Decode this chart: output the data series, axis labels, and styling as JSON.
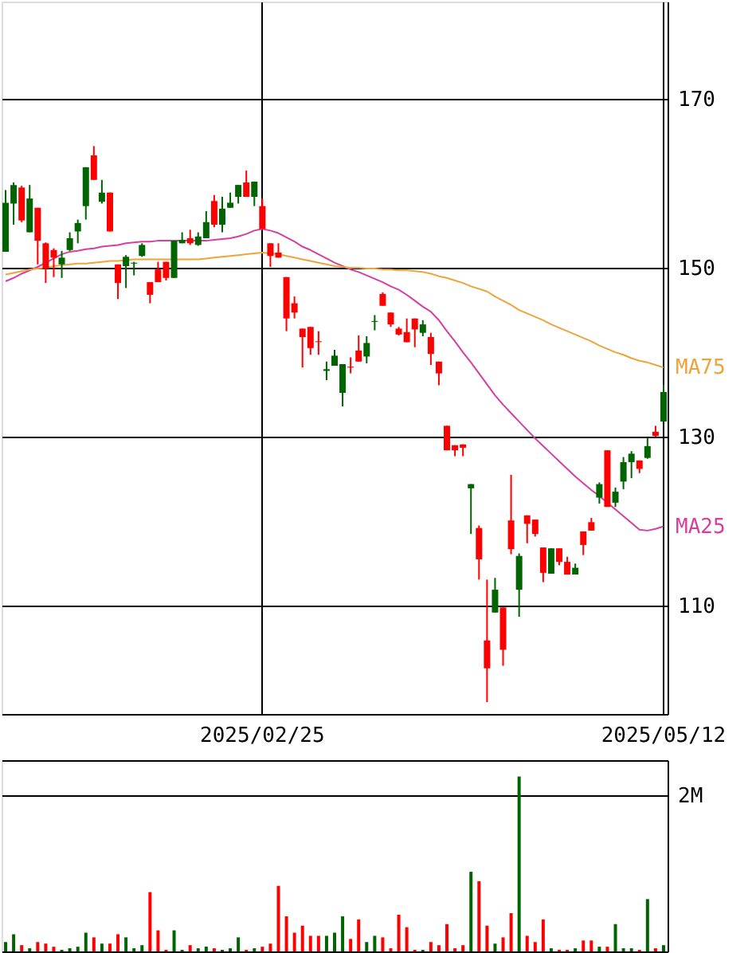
{
  "chart_data": [
    {
      "type": "candlestick",
      "categories": [
        null,
        null,
        null,
        null,
        null,
        null,
        null,
        null,
        null,
        null,
        null,
        null,
        null,
        null,
        null,
        null,
        null,
        null,
        null,
        null,
        null,
        null,
        null,
        null,
        null,
        null,
        null,
        null,
        null,
        null,
        null,
        null,
        "2025/02/25",
        null,
        null,
        null,
        null,
        null,
        null,
        null,
        null,
        null,
        null,
        null,
        null,
        null,
        null,
        null,
        null,
        null,
        null,
        null,
        null,
        null,
        null,
        null,
        null,
        null,
        null,
        null,
        null,
        null,
        null,
        null,
        null,
        null,
        null,
        null,
        null,
        null,
        null,
        null,
        null,
        null,
        null,
        null,
        null,
        null,
        null,
        null,
        null,
        null,
        "2025/05/12"
      ],
      "ohlc": [
        [
          151.9,
          159.2,
          151.9,
          157.7
        ],
        [
          157.6,
          160.1,
          155.1,
          159.8
        ],
        [
          159.5,
          159.7,
          155.4,
          155.6
        ],
        [
          154.2,
          159.8,
          154.2,
          158.2
        ],
        [
          157.1,
          157.1,
          150.4,
          153.2
        ],
        [
          152.9,
          153.0,
          148.2,
          149.9
        ],
        [
          152.1,
          152.3,
          148.9,
          151.2
        ],
        [
          150.4,
          152.0,
          148.8,
          151.2
        ],
        [
          152.1,
          154.2,
          152.0,
          153.5
        ],
        [
          154.3,
          155.7,
          152.9,
          155.3
        ],
        [
          157.3,
          161.9,
          155.7,
          161.9
        ],
        [
          163.3,
          164.4,
          160.4,
          160.4
        ],
        [
          157.8,
          160.4,
          157.6,
          158.9
        ],
        [
          158.9,
          158.9,
          154.3,
          154.3
        ],
        [
          150.4,
          150.4,
          146.3,
          148.2
        ],
        [
          150.2,
          151.5,
          147.6,
          151.3
        ],
        [
          150.5,
          150.7,
          149.1,
          150.6
        ],
        [
          151.4,
          152.9,
          151.3,
          152.7
        ],
        [
          148.3,
          148.3,
          145.8,
          146.8
        ],
        [
          149.8,
          150.7,
          148.3,
          148.3
        ],
        [
          150.7,
          150.7,
          148.5,
          148.8
        ],
        [
          148.8,
          153.2,
          148.8,
          153.2
        ],
        [
          152.9,
          154.2,
          152.9,
          153.3
        ],
        [
          153.5,
          154.5,
          152.7,
          152.9
        ],
        [
          152.7,
          154.2,
          152.6,
          153.7
        ],
        [
          153.5,
          156.7,
          153.5,
          155.4
        ],
        [
          157.9,
          158.6,
          154.8,
          155.1
        ],
        [
          155.1,
          158.4,
          154.2,
          157.0
        ],
        [
          157.1,
          158.9,
          157.1,
          157.7
        ],
        [
          158.4,
          159.8,
          157.6,
          159.8
        ],
        [
          160.1,
          161.5,
          158.4,
          158.4
        ],
        [
          158.4,
          160.2,
          157.3,
          160.2
        ],
        [
          157.3,
          158.2,
          154.6,
          154.6
        ],
        [
          152.9,
          152.9,
          150.1,
          151.4
        ],
        [
          151.8,
          152.9,
          151.2,
          151.2
        ],
        [
          148.9,
          148.9,
          142.5,
          144.0
        ],
        [
          145.8,
          146.6,
          144.0,
          144.7
        ],
        [
          142.8,
          142.8,
          138.2,
          141.8
        ],
        [
          143.0,
          143.0,
          139.7,
          140.5
        ],
        [
          141.3,
          142.5,
          139.7,
          141.2
        ],
        [
          137.8,
          138.9,
          136.7,
          138.0
        ],
        [
          138.4,
          140.3,
          138.4,
          139.6
        ],
        [
          135.2,
          138.6,
          133.6,
          138.6
        ],
        [
          138.3,
          139.4,
          137.5,
          138.2
        ],
        [
          140.2,
          142.0,
          138.9,
          138.9
        ],
        [
          139.5,
          141.9,
          138.7,
          141.1
        ],
        [
          143.6,
          144.4,
          142.6,
          143.7
        ],
        [
          146.9,
          147.1,
          145.5,
          145.5
        ],
        [
          144.7,
          144.7,
          143.0,
          143.3
        ],
        [
          142.8,
          143.0,
          142.0,
          142.1
        ],
        [
          142.4,
          144.0,
          141.2,
          141.2
        ],
        [
          144.0,
          144.0,
          140.6,
          142.7
        ],
        [
          142.3,
          143.8,
          141.9,
          143.3
        ],
        [
          141.8,
          142.3,
          138.5,
          139.8
        ],
        [
          138.9,
          138.9,
          136.1,
          137.5
        ],
        [
          131.3,
          131.3,
          128.4,
          128.4
        ],
        [
          129.0,
          129.0,
          127.7,
          128.4
        ],
        [
          129.1,
          129.1,
          127.7,
          128.7
        ],
        [
          123.9,
          124.4,
          118.5,
          124.4
        ],
        [
          119.2,
          119.5,
          113.1,
          115.5
        ],
        [
          105.9,
          113.1,
          98.6,
          102.6
        ],
        [
          109.2,
          113.3,
          109.2,
          111.9
        ],
        [
          109.8,
          109.8,
          102.9,
          104.8
        ],
        [
          120.1,
          125.5,
          116.1,
          116.7
        ],
        [
          111.9,
          116.2,
          108.7,
          115.9
        ],
        [
          120.7,
          120.7,
          117.4,
          119.7
        ],
        [
          120.2,
          120.2,
          118.2,
          118.5
        ],
        [
          116.9,
          116.9,
          112.8,
          113.9
        ],
        [
          113.8,
          116.8,
          113.8,
          116.8
        ],
        [
          116.8,
          116.8,
          114.8,
          115.2
        ],
        [
          115.2,
          115.8,
          113.7,
          113.7
        ],
        [
          113.7,
          115.0,
          113.7,
          114.5
        ],
        [
          118.8,
          118.8,
          116.0,
          117.2
        ],
        [
          119.9,
          120.4,
          118.9,
          118.9
        ],
        [
          122.8,
          124.6,
          122.1,
          124.4
        ],
        [
          128.4,
          128.4,
          121.7,
          121.7
        ],
        [
          122.2,
          124.0,
          121.7,
          123.5
        ],
        [
          124.7,
          127.6,
          123.8,
          127.0
        ],
        [
          127.0,
          128.3,
          125.1,
          128.0
        ],
        [
          127.2,
          127.2,
          125.7,
          126.2
        ],
        [
          127.5,
          129.9,
          127.4,
          128.9
        ],
        [
          130.6,
          131.3,
          130.0,
          130.1
        ],
        [
          131.8,
          136.2,
          131.8,
          135.3
        ]
      ],
      "colors": [
        "#006400",
        "#006400",
        "#ff0000",
        "#006400",
        "#ff0000",
        "#ff0000",
        "#ff0000",
        "#006400",
        "#006400",
        "#006400",
        "#006400",
        "#ff0000",
        "#006400",
        "#ff0000",
        "#ff0000",
        "#006400",
        "#006400",
        "#006400",
        "#ff0000",
        "#ff0000",
        "#ff0000",
        "#006400",
        "#006400",
        "#ff0000",
        "#006400",
        "#006400",
        "#ff0000",
        "#006400",
        "#006400",
        "#006400",
        "#ff0000",
        "#006400",
        "#ff0000",
        "#ff0000",
        "#ff0000",
        "#ff0000",
        "#ff0000",
        "#ff0000",
        "#ff0000",
        "#ff0000",
        "#006400",
        "#006400",
        "#006400",
        "#ff0000",
        "#ff0000",
        "#006400",
        "#006400",
        "#ff0000",
        "#ff0000",
        "#ff0000",
        "#ff0000",
        "#ff0000",
        "#006400",
        "#ff0000",
        "#ff0000",
        "#ff0000",
        "#ff0000",
        "#ff0000",
        "#006400",
        "#ff0000",
        "#ff0000",
        "#006400",
        "#ff0000",
        "#ff0000",
        "#006400",
        "#ff0000",
        "#ff0000",
        "#ff0000",
        "#006400",
        "#ff0000",
        "#ff0000",
        "#006400",
        "#ff0000",
        "#ff0000",
        "#006400",
        "#ff0000",
        "#006400",
        "#006400",
        "#006400",
        "#ff0000",
        "#006400",
        "#ff0000",
        "#006400"
      ],
      "series": [
        {
          "name": "MA25",
          "type": "line",
          "color": "#d63fa0",
          "values": [
            148.4,
            148.8,
            149.3,
            149.7,
            150.1,
            150.6,
            151.1,
            151.6,
            151.9,
            152.0,
            152.2,
            152.3,
            152.5,
            152.6,
            152.7,
            152.9,
            153.0,
            153.1,
            153.1,
            153.2,
            153.2,
            153.2,
            153.2,
            153.2,
            153.2,
            153.2,
            153.3,
            153.4,
            153.5,
            153.7,
            154.0,
            154.4,
            154.6,
            154.4,
            154.1,
            153.6,
            153.1,
            152.5,
            152.1,
            151.6,
            151.1,
            150.6,
            150.2,
            149.8,
            149.5,
            149.1,
            148.7,
            148.3,
            147.8,
            147.4,
            146.8,
            146.1,
            145.4,
            144.8,
            143.8,
            142.5,
            141.3,
            140.0,
            138.8,
            137.5,
            136.2,
            134.9,
            133.8,
            132.8,
            131.8,
            130.8,
            129.8,
            128.9,
            128.0,
            127.1,
            126.2,
            125.3,
            124.5,
            123.7,
            123.0,
            122.2,
            121.4,
            120.6,
            119.8,
            119.0,
            118.9,
            119.1,
            119.4
          ]
        },
        {
          "name": "MA75",
          "type": "line",
          "color": "#eda43b",
          "values": [
            149.2,
            149.4,
            149.6,
            149.8,
            149.9,
            150.0,
            150.2,
            150.3,
            150.4,
            150.5,
            150.5,
            150.6,
            150.7,
            150.8,
            150.8,
            150.9,
            151.0,
            151.0,
            151.0,
            151.0,
            151.0,
            151.0,
            151.0,
            151.0,
            151.0,
            151.1,
            151.2,
            151.3,
            151.4,
            151.5,
            151.6,
            151.7,
            151.8,
            151.7,
            151.6,
            151.4,
            151.2,
            151.0,
            150.8,
            150.6,
            150.4,
            150.2,
            150.1,
            150.0,
            150.0,
            149.9,
            149.9,
            149.8,
            149.8,
            149.7,
            149.7,
            149.6,
            149.5,
            149.3,
            149.0,
            148.8,
            148.5,
            148.2,
            147.8,
            147.5,
            147.2,
            146.6,
            146.1,
            145.6,
            145.0,
            144.6,
            144.2,
            143.8,
            143.3,
            142.9,
            142.5,
            142.1,
            141.7,
            141.3,
            140.8,
            140.4,
            140.0,
            139.7,
            139.3,
            139.0,
            138.8,
            138.5,
            138.2
          ]
        }
      ],
      "ylim": [
        97.2,
        181.5
      ],
      "yticks": [
        110,
        130,
        150,
        170
      ],
      "grid": true
    },
    {
      "type": "bar",
      "categories": [
        null,
        null,
        null,
        null,
        null,
        null,
        null,
        null,
        null,
        null,
        null,
        null,
        null,
        null,
        null,
        null,
        null,
        null,
        null,
        null,
        null,
        null,
        null,
        null,
        null,
        null,
        null,
        null,
        null,
        null,
        null,
        null,
        "2025/02/25",
        null,
        null,
        null,
        null,
        null,
        null,
        null,
        null,
        null,
        null,
        null,
        null,
        null,
        null,
        null,
        null,
        null,
        null,
        null,
        null,
        null,
        null,
        null,
        null,
        null,
        null,
        null,
        null,
        null,
        null,
        null,
        null,
        null,
        null,
        null,
        null,
        null,
        null,
        null,
        null,
        null,
        null,
        null,
        null,
        null,
        null,
        null,
        null,
        null,
        "2025/05/12"
      ],
      "values": [
        0.12,
        0.22,
        0.08,
        0.04,
        0.12,
        0.1,
        0.06,
        0.02,
        0.04,
        0.06,
        0.24,
        0.18,
        0.1,
        0.1,
        0.22,
        0.18,
        0.04,
        0.08,
        0.76,
        0.27,
        0.02,
        0.27,
        0.02,
        0.08,
        0.04,
        0.06,
        0.04,
        0.02,
        0.04,
        0.18,
        0.02,
        0.04,
        0.06,
        0.1,
        0.84,
        0.45,
        0.24,
        0.33,
        0.2,
        0.2,
        0.2,
        0.24,
        0.45,
        0.16,
        0.41,
        0.12,
        0.2,
        0.18,
        0.04,
        0.47,
        0.31,
        0.02,
        0.02,
        0.12,
        0.08,
        0.35,
        0.04,
        0.08,
        1.02,
        0.9,
        0.33,
        0.1,
        0.18,
        0.49,
        2.24,
        0.2,
        0.12,
        0.41,
        0.04,
        0.02,
        0.02,
        0.04,
        0.14,
        0.14,
        0.06,
        0.06,
        0.35,
        0.04,
        0.04,
        0.02,
        0.67,
        0.04,
        0.08
      ],
      "colors": [
        "#006400",
        "#006400",
        "#ff0000",
        "#006400",
        "#ff0000",
        "#ff0000",
        "#ff0000",
        "#006400",
        "#006400",
        "#006400",
        "#006400",
        "#ff0000",
        "#006400",
        "#ff0000",
        "#ff0000",
        "#006400",
        "#006400",
        "#006400",
        "#ff0000",
        "#ff0000",
        "#ff0000",
        "#006400",
        "#006400",
        "#ff0000",
        "#006400",
        "#006400",
        "#ff0000",
        "#006400",
        "#006400",
        "#006400",
        "#ff0000",
        "#006400",
        "#ff0000",
        "#ff0000",
        "#ff0000",
        "#ff0000",
        "#ff0000",
        "#ff0000",
        "#ff0000",
        "#ff0000",
        "#006400",
        "#006400",
        "#006400",
        "#ff0000",
        "#ff0000",
        "#006400",
        "#006400",
        "#ff0000",
        "#ff0000",
        "#ff0000",
        "#ff0000",
        "#ff0000",
        "#006400",
        "#ff0000",
        "#ff0000",
        "#ff0000",
        "#ff0000",
        "#ff0000",
        "#006400",
        "#ff0000",
        "#ff0000",
        "#006400",
        "#ff0000",
        "#ff0000",
        "#006400",
        "#ff0000",
        "#ff0000",
        "#ff0000",
        "#006400",
        "#ff0000",
        "#ff0000",
        "#006400",
        "#ff0000",
        "#ff0000",
        "#006400",
        "#ff0000",
        "#006400",
        "#006400",
        "#006400",
        "#ff0000",
        "#006400",
        "#ff0000",
        "#006400"
      ],
      "ylim": [
        0,
        2.45
      ],
      "yticks": [
        {
          "value": 0,
          "label": null
        },
        {
          "value": 2,
          "label": "2M"
        }
      ],
      "grid": "y",
      "tick_labels": "y"
    }
  ]
}
